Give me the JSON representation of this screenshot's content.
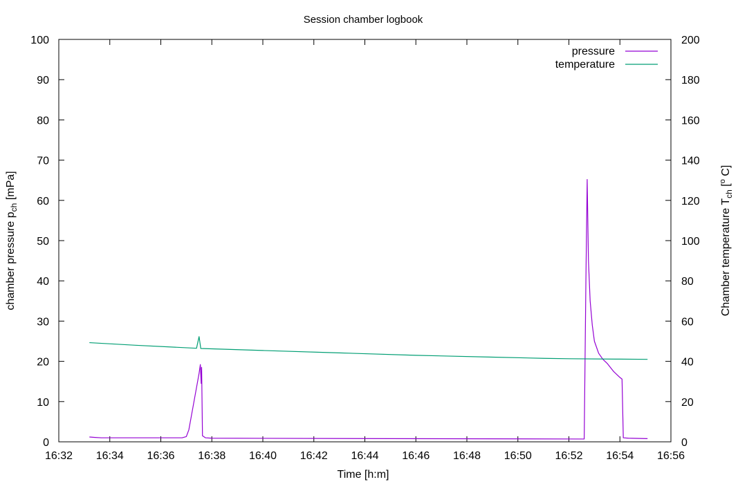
{
  "chart_data": {
    "type": "line",
    "title": "Session chamber logbook",
    "xlabel": "Time [h:m]",
    "ylabel": {
      "main": "chamber pressure p",
      "sub": "ch",
      "tail": " [mPa]"
    },
    "y2label": {
      "main": "Chamber temperature T",
      "sub": "ch",
      "tail": " [",
      "sup": "o",
      "tail2": " C]"
    },
    "x_range": [
      "16:32",
      "16:56"
    ],
    "x_ticks": [
      "16:32",
      "16:34",
      "16:36",
      "16:38",
      "16:40",
      "16:42",
      "16:44",
      "16:46",
      "16:48",
      "16:50",
      "16:52",
      "16:54",
      "16:56"
    ],
    "ylim": [
      0,
      100
    ],
    "y_ticks": [
      "0",
      "10",
      "20",
      "30",
      "40",
      "50",
      "60",
      "70",
      "80",
      "90",
      "100"
    ],
    "y2lim": [
      0,
      200
    ],
    "y2_ticks": [
      "0",
      "20",
      "40",
      "60",
      "80",
      "100",
      "120",
      "140",
      "160",
      "180",
      "200"
    ],
    "grid": false,
    "legend_position": "top-right",
    "series": [
      {
        "name": "pressure",
        "axis": "left",
        "color": "#9400d3",
        "points": [
          [
            "16:33:12",
            1.2
          ],
          [
            "16:33:25",
            1.1
          ],
          [
            "16:33:40",
            1.0
          ],
          [
            "16:35:00",
            1.0
          ],
          [
            "16:36:50",
            1.0
          ],
          [
            "16:37:00",
            1.3
          ],
          [
            "16:37:06",
            3.0
          ],
          [
            "16:37:12",
            6.5
          ],
          [
            "16:37:18",
            10.0
          ],
          [
            "16:37:24",
            13.5
          ],
          [
            "16:37:30",
            17.0
          ],
          [
            "16:37:33",
            19.2
          ],
          [
            "16:37:35",
            14.5
          ],
          [
            "16:37:36",
            18.5
          ],
          [
            "16:37:38",
            1.5
          ],
          [
            "16:37:45",
            1.0
          ],
          [
            "16:38:00",
            0.9
          ],
          [
            "16:45:00",
            0.8
          ],
          [
            "16:52:36",
            0.7
          ],
          [
            "16:52:40",
            40.0
          ],
          [
            "16:52:43",
            65.2
          ],
          [
            "16:52:46",
            45.0
          ],
          [
            "16:52:50",
            35.0
          ],
          [
            "16:52:55",
            29.0
          ],
          [
            "16:53:00",
            25.0
          ],
          [
            "16:53:10",
            22.0
          ],
          [
            "16:53:20",
            20.5
          ],
          [
            "16:53:30",
            19.5
          ],
          [
            "16:53:45",
            17.5
          ],
          [
            "16:54:00",
            16.0
          ],
          [
            "16:54:05",
            15.6
          ],
          [
            "16:54:08",
            1.0
          ],
          [
            "16:54:20",
            0.9
          ],
          [
            "16:55:05",
            0.8
          ]
        ]
      },
      {
        "name": "temperature",
        "axis": "right",
        "color": "#009e73",
        "points": [
          [
            "16:33:12",
            49.3
          ],
          [
            "16:35:00",
            48.0
          ],
          [
            "16:37:24",
            46.5
          ],
          [
            "16:37:30",
            52.3
          ],
          [
            "16:37:34",
            46.4
          ],
          [
            "16:40:00",
            45.4
          ],
          [
            "16:43:00",
            44.2
          ],
          [
            "16:46:00",
            43.0
          ],
          [
            "16:49:00",
            42.1
          ],
          [
            "16:51:00",
            41.5
          ],
          [
            "16:52:00",
            41.3
          ],
          [
            "16:54:00",
            41.1
          ],
          [
            "16:55:05",
            41.0
          ]
        ]
      }
    ]
  }
}
